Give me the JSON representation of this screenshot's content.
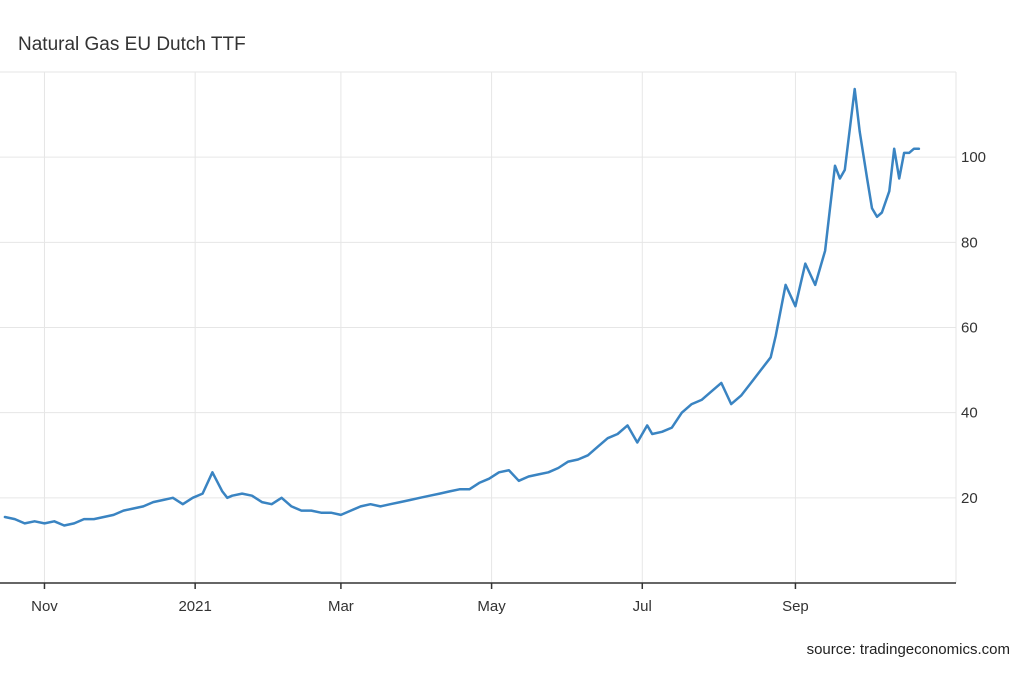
{
  "title": "Natural Gas EU Dutch TTF",
  "source": "source: tradingeconomics.com",
  "chart_data": {
    "type": "line",
    "title": "Natural Gas EU Dutch TTF",
    "xlabel": "",
    "ylabel": "",
    "x_ticks": [
      "Nov",
      "2021",
      "Mar",
      "May",
      "Jul",
      "Sep"
    ],
    "y_ticks": [
      20,
      40,
      60,
      80,
      100
    ],
    "ylim": [
      0,
      120
    ],
    "xlim": [
      "2020-10-14",
      "2021-11-05"
    ],
    "grid": true,
    "y_axis_position": "right",
    "color": "#3a84c2",
    "series": [
      {
        "x": [
          "2020-10-16",
          "2020-10-20",
          "2020-10-24",
          "2020-10-28",
          "2020-11-01",
          "2020-11-05",
          "2020-11-09",
          "2020-11-13",
          "2020-11-17",
          "2020-11-21",
          "2020-11-25",
          "2020-11-29",
          "2020-12-03",
          "2020-12-07",
          "2020-12-11",
          "2020-12-15",
          "2020-12-19",
          "2020-12-23",
          "2020-12-27",
          "2020-12-31",
          "2021-01-04",
          "2021-01-08",
          "2021-01-12",
          "2021-01-14",
          "2021-01-16",
          "2021-01-20",
          "2021-01-24",
          "2021-01-28",
          "2021-02-01",
          "2021-02-05",
          "2021-02-09",
          "2021-02-13",
          "2021-02-17",
          "2021-02-21",
          "2021-02-25",
          "2021-03-01",
          "2021-03-05",
          "2021-03-09",
          "2021-03-13",
          "2021-03-17",
          "2021-03-21",
          "2021-03-25",
          "2021-03-29",
          "2021-04-02",
          "2021-04-06",
          "2021-04-10",
          "2021-04-14",
          "2021-04-18",
          "2021-04-22",
          "2021-04-26",
          "2021-04-30",
          "2021-05-04",
          "2021-05-08",
          "2021-05-12",
          "2021-05-16",
          "2021-05-20",
          "2021-05-24",
          "2021-05-28",
          "2021-06-01",
          "2021-06-05",
          "2021-06-09",
          "2021-06-13",
          "2021-06-17",
          "2021-06-21",
          "2021-06-25",
          "2021-06-29",
          "2021-07-03",
          "2021-07-05",
          "2021-07-09",
          "2021-07-13",
          "2021-07-17",
          "2021-07-21",
          "2021-07-25",
          "2021-07-29",
          "2021-08-02",
          "2021-08-06",
          "2021-08-10",
          "2021-08-14",
          "2021-08-18",
          "2021-08-22",
          "2021-08-24",
          "2021-08-28",
          "2021-09-01",
          "2021-09-05",
          "2021-09-09",
          "2021-09-13",
          "2021-09-15",
          "2021-09-17",
          "2021-09-19",
          "2021-09-21",
          "2021-09-25",
          "2021-09-27",
          "2021-09-30",
          "2021-10-02",
          "2021-10-04",
          "2021-10-06",
          "2021-10-09",
          "2021-10-11",
          "2021-10-13",
          "2021-10-15",
          "2021-10-17",
          "2021-10-19",
          "2021-10-21"
        ],
        "values": [
          15.5,
          15.0,
          14.0,
          14.5,
          14.0,
          14.5,
          13.5,
          14.0,
          15.0,
          15.0,
          15.5,
          16.0,
          17.0,
          17.5,
          18.0,
          19.0,
          19.5,
          20.0,
          18.5,
          20.0,
          21.0,
          26.0,
          21.5,
          20.0,
          20.5,
          21.0,
          20.5,
          19.0,
          18.5,
          20.0,
          18.0,
          17.0,
          17.0,
          16.5,
          16.5,
          16.0,
          17.0,
          18.0,
          18.5,
          18.0,
          18.5,
          19.0,
          19.5,
          20.0,
          20.5,
          21.0,
          21.5,
          22.0,
          22.0,
          23.5,
          24.5,
          26.0,
          26.5,
          24.0,
          25.0,
          25.5,
          26.0,
          27.0,
          28.5,
          29.0,
          30.0,
          32.0,
          34.0,
          35.0,
          37.0,
          33.0,
          37.0,
          35.0,
          35.5,
          36.5,
          40.0,
          42.0,
          43.0,
          45.0,
          47.0,
          42.0,
          44.0,
          47.0,
          50.0,
          53.0,
          58.0,
          70.0,
          65.0,
          75.0,
          70.0,
          78.0,
          88.0,
          98.0,
          95.0,
          97.0,
          116.0,
          106.0,
          95.0,
          88.0,
          86.0,
          87.0,
          92.0,
          102.0,
          95.0,
          101.0,
          101.0,
          102.0,
          102.0
        ]
      }
    ]
  }
}
